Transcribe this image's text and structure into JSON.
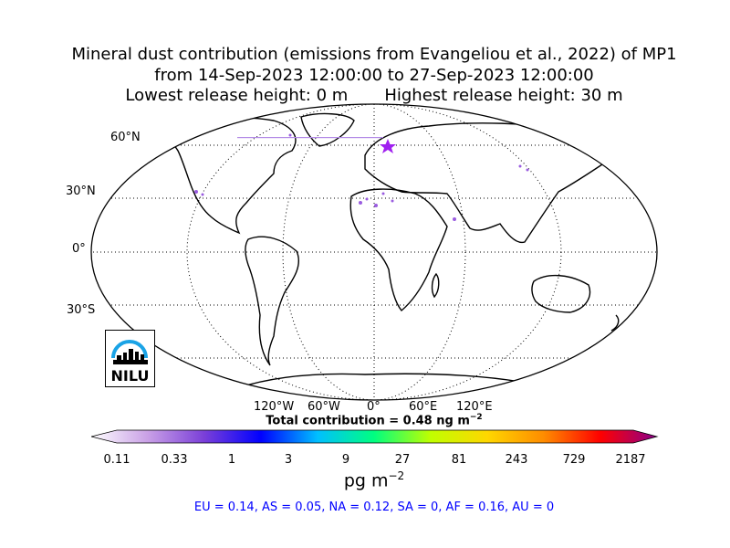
{
  "title": {
    "line1": "Mineral dust contribution (emissions from Evangeliou et al., 2022) of MP1",
    "line2": "from 14-Sep-2023 12:00:00 to 27-Sep-2023 12:00:00",
    "line3_left": "Lowest release height: 0 m",
    "line3_right": "Highest release height: 30 m"
  },
  "map": {
    "projection": "Robinson",
    "lat_labels": [
      "60°N",
      "30°N",
      "0°",
      "30°S"
    ],
    "lon_labels": [
      "120°W",
      "60°W",
      "0°",
      "60°E",
      "120°E"
    ],
    "release_marker": "star",
    "release_marker_color": "#a020f0"
  },
  "total_text": "Total contribution = 0.48 ng m",
  "total_exp": "−2",
  "colorbar": {
    "ticks": [
      "0.11",
      "0.33",
      "1",
      "3",
      "9",
      "27",
      "81",
      "243",
      "729",
      "2187"
    ],
    "colors": [
      "#ffffff",
      "#c9a0e6",
      "#7a3fd8",
      "#0000ff",
      "#00bfff",
      "#00ff80",
      "#c0ff00",
      "#ffd700",
      "#ff8c00",
      "#ff0000",
      "#8b008b"
    ],
    "unit": "pg m",
    "unit_exp": "−2"
  },
  "region_stats": "EU = 0.14,  AS = 0.05,  NA = 0.12,  SA = 0,  AF = 0.16,  AU = 0",
  "logo": {
    "text": "NILU"
  }
}
